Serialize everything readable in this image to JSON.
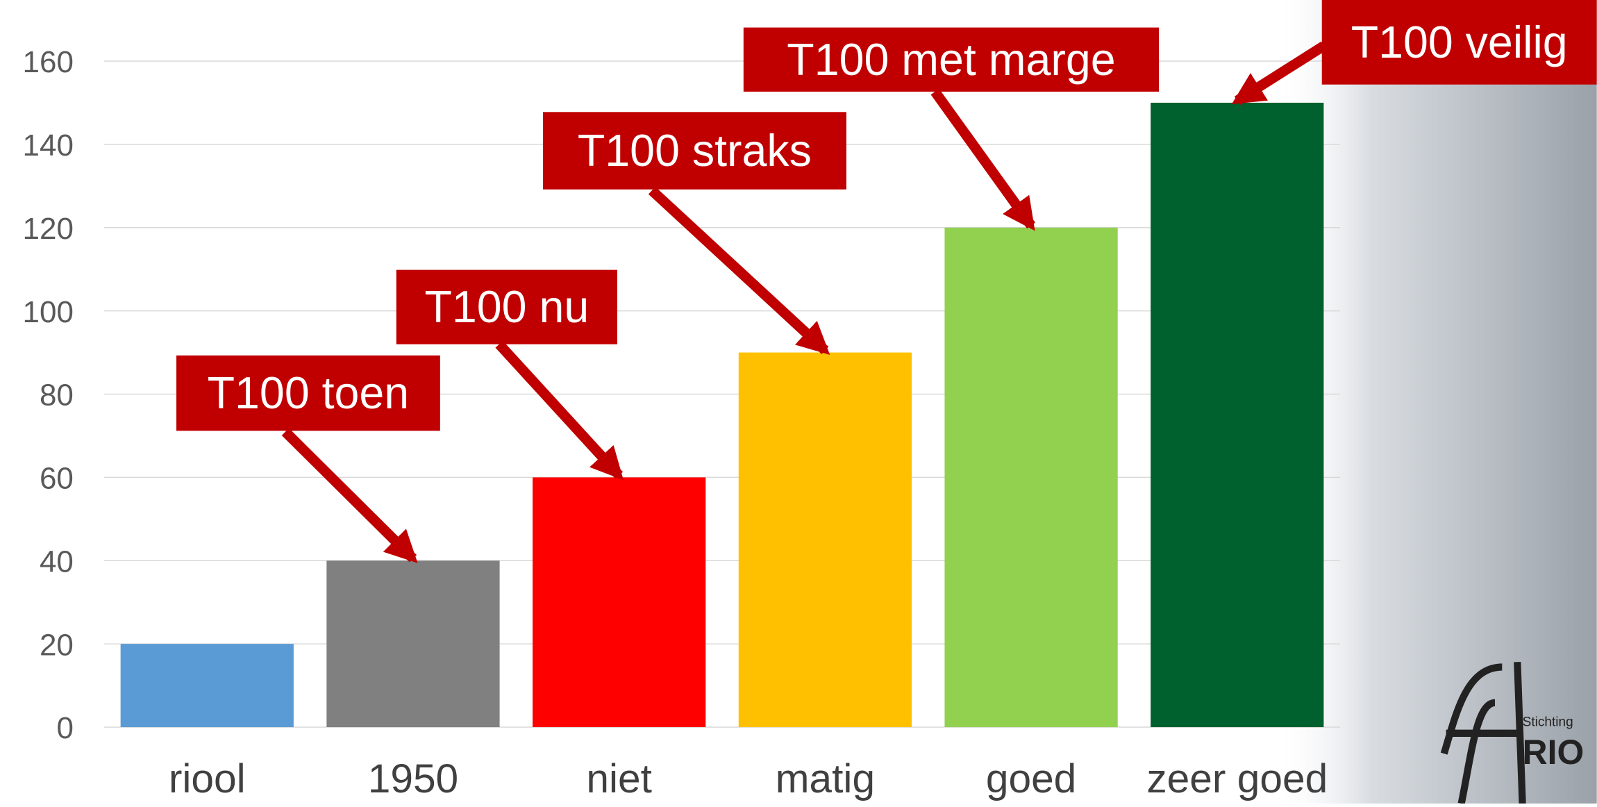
{
  "chart_data": {
    "type": "bar",
    "categories": [
      "riool",
      "1950",
      "niet",
      "matig",
      "goed",
      "zeer goed"
    ],
    "values": [
      20,
      40,
      60,
      90,
      120,
      150
    ],
    "colors": [
      "#5b9bd5",
      "#808080",
      "#ff0000",
      "#ffc000",
      "#92d050",
      "#00612e"
    ],
    "ylim": [
      0,
      160
    ],
    "yticks": [
      0,
      20,
      40,
      60,
      80,
      100,
      120,
      140,
      160
    ],
    "grid": true,
    "annotations": [
      "T100 toen",
      "T100 nu",
      "T100 straks",
      "T100 met marge",
      "T100 veilig"
    ],
    "annotation_color": "#c00000"
  },
  "logo": {
    "small": "Stichting",
    "large": "RIO"
  }
}
